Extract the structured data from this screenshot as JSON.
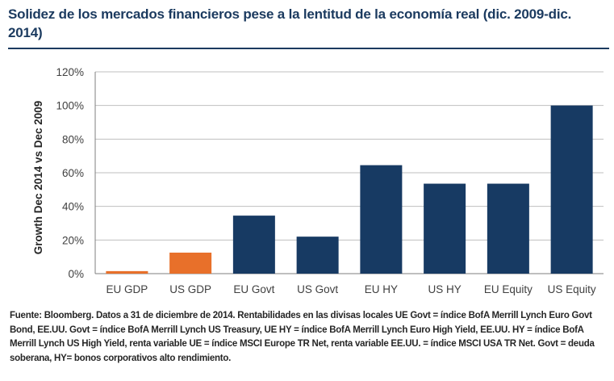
{
  "title": "Solidez de los mercados financieros pese a la lentitud de la economía real (dic. 2009-dic. 2014)",
  "footnote": "Fuente: Bloomberg. Datos a 31 de diciembre de 2014. Rentabilidades en las divisas locales UE Govt = índice BofA Merrill Lynch Euro Govt Bond, EE.UU. Govt = índice BofA Merrill Lynch US Treasury, UE HY = índice BofA Merrill Lynch Euro High Yield, EE.UU. HY = índice BofA Merrill Lynch US High Yield, renta variable UE = índice MSCI Europe TR Net, renta variable EE.UU. = índice MSCI USA TR Net. Govt = deuda soberana, HY= bonos corporativos alto rendimiento.",
  "chart_data": {
    "type": "bar",
    "categories": [
      "EU GDP",
      "US GDP",
      "EU Govt",
      "US Govt",
      "EU HY",
      "US HY",
      "EU Equity",
      "US Equity"
    ],
    "values": [
      1.5,
      12.5,
      34.5,
      22,
      64.5,
      53.5,
      53.5,
      100
    ],
    "bar_colors": [
      "#e8702a",
      "#e8702a",
      "#173a63",
      "#173a63",
      "#173a63",
      "#173a63",
      "#173a63",
      "#173a63"
    ],
    "ylabel": "Growth Dec 2014 vs Dec 2009",
    "ylim": [
      0,
      120
    ],
    "yticks": [
      0,
      20,
      40,
      60,
      80,
      100,
      120
    ],
    "ytick_labels": [
      "0%",
      "20%",
      "40%",
      "60%",
      "80%",
      "100%",
      "120%"
    ],
    "grid": true
  }
}
